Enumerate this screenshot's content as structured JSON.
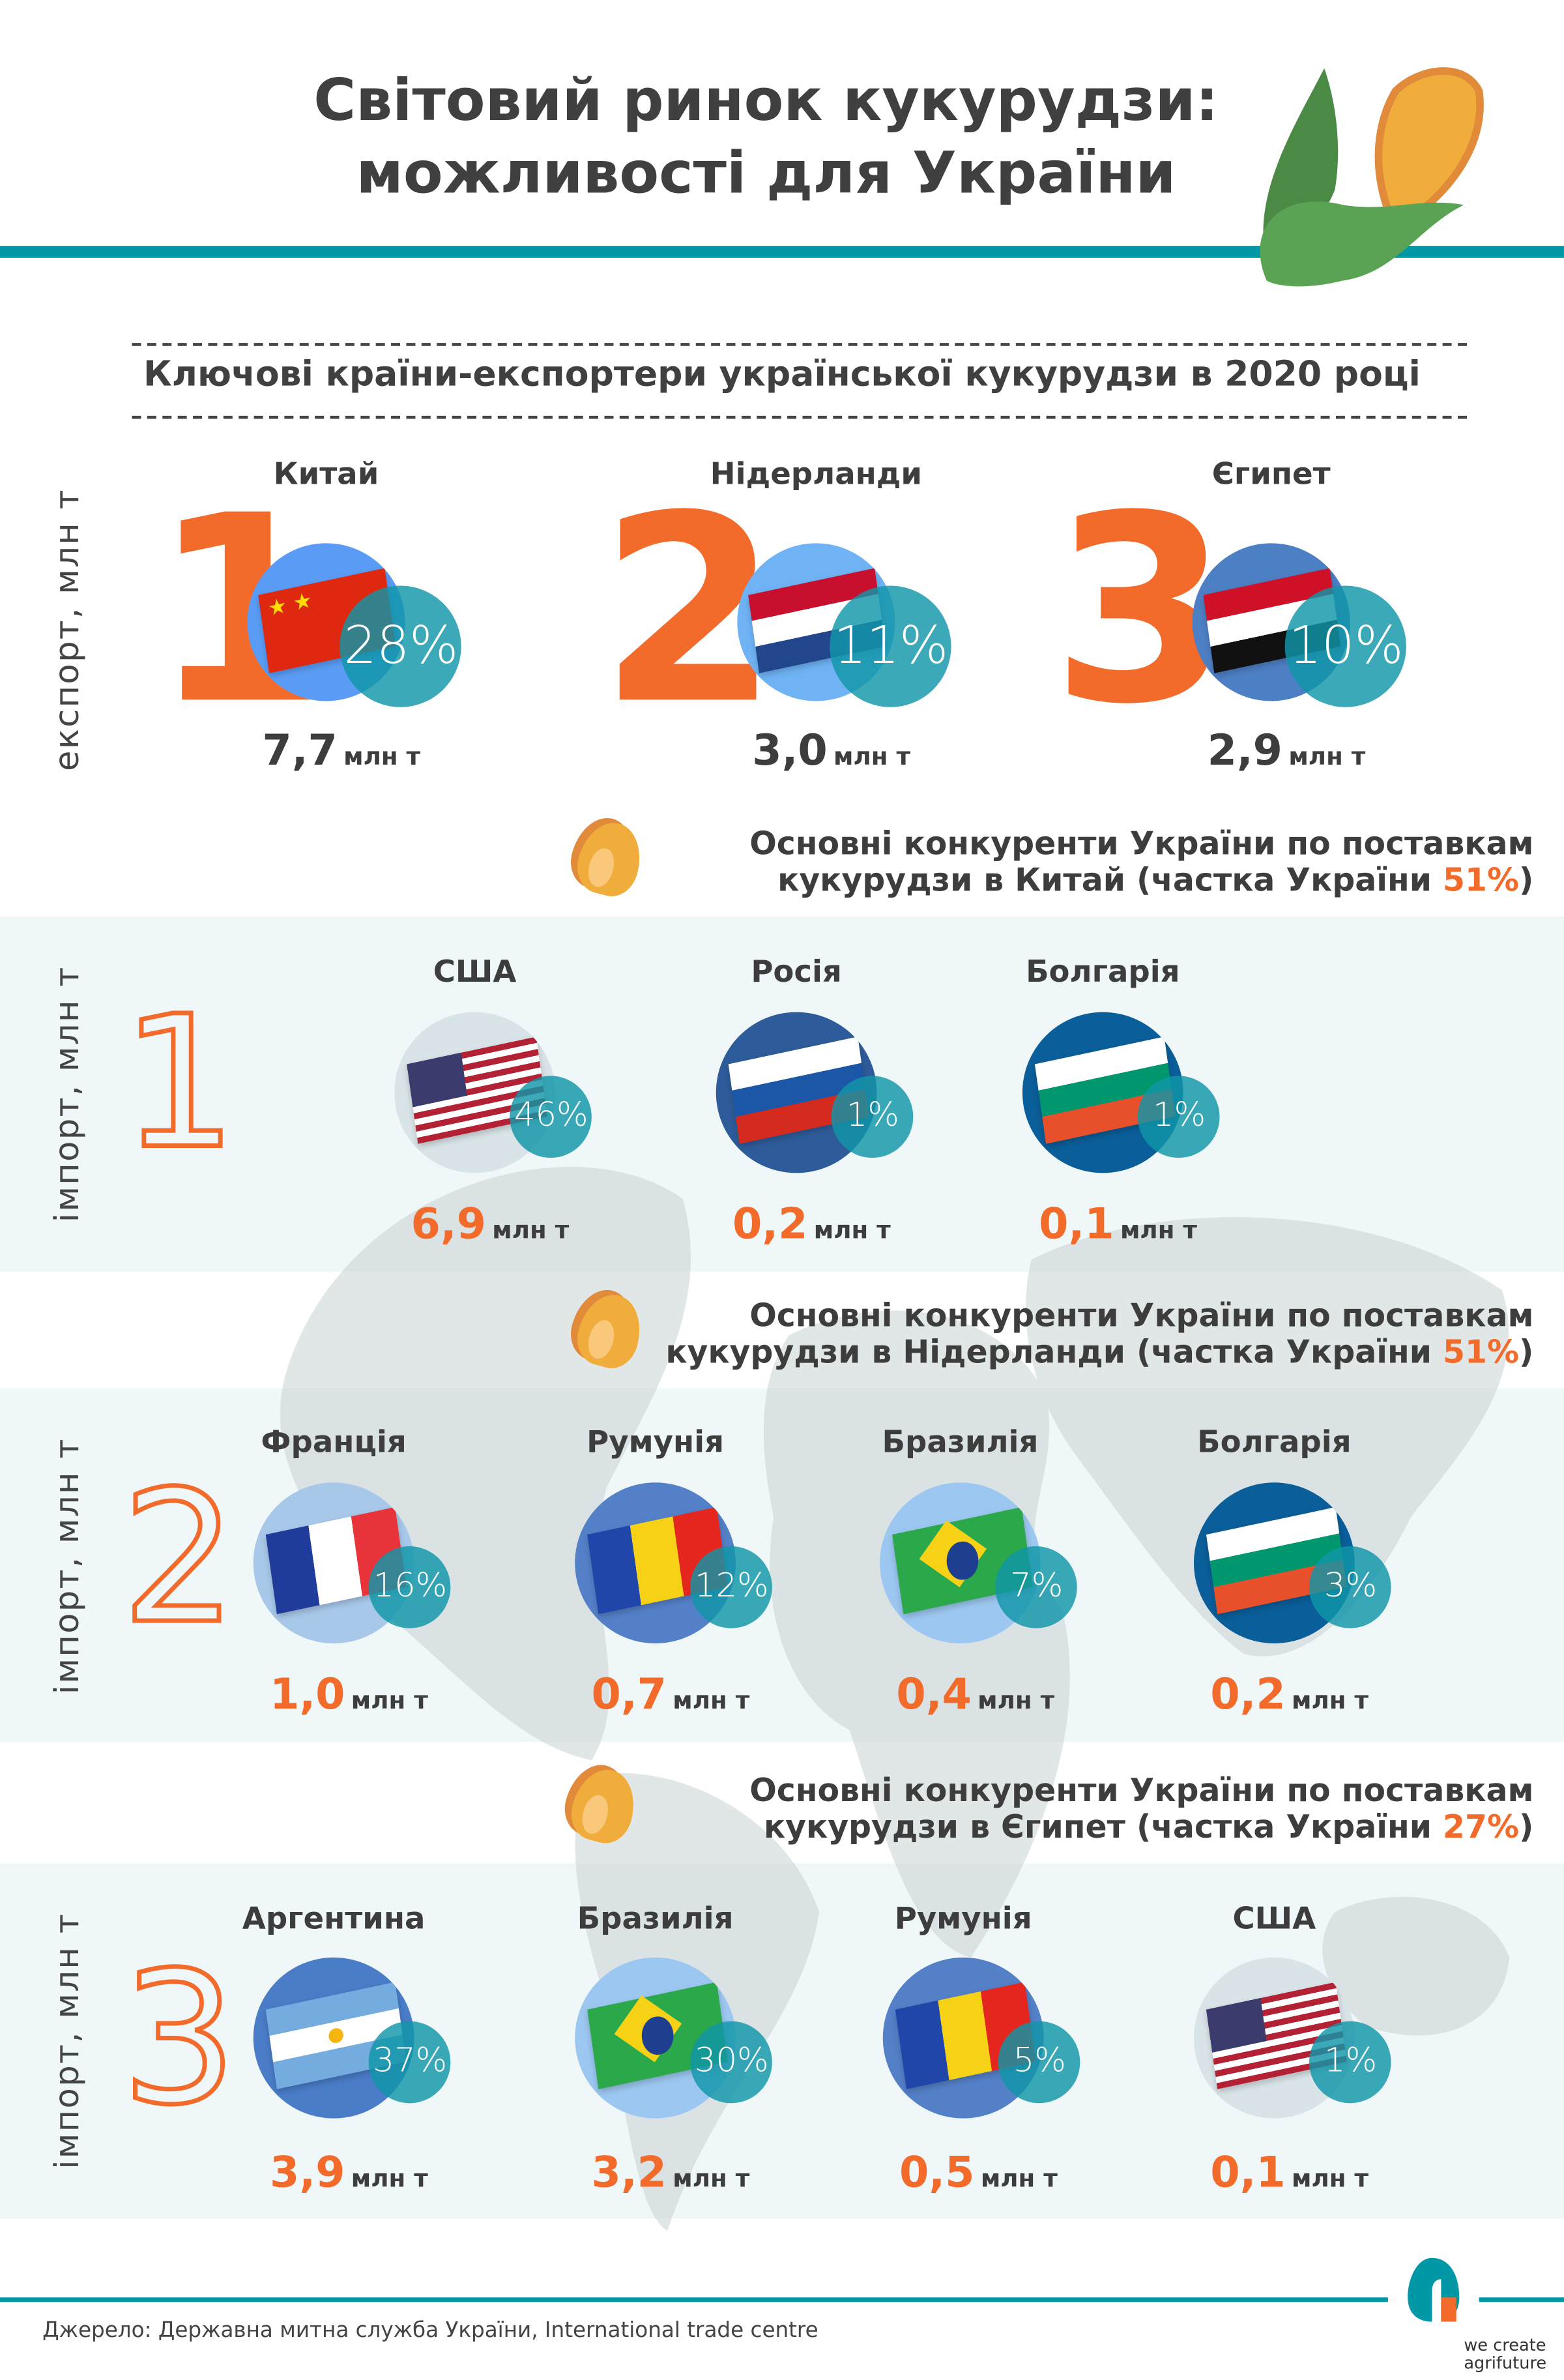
{
  "header": {
    "title_line1": "Світовий ринок кукурудзи:",
    "title_line2": "можливості для України"
  },
  "export_section": {
    "subtitle": "Ключові країни-експортери української кукурудзи в 2020 році",
    "axis_label": "експорт, млн т",
    "items": [
      {
        "rank": "1",
        "country": "Китай",
        "share": "28%",
        "value": "7,7",
        "unit": "млн т",
        "flag": "china-flag"
      },
      {
        "rank": "2",
        "country": "Нідерланди",
        "share": "11%",
        "value": "3,0",
        "unit": "млн т",
        "flag": "netherlands-flag"
      },
      {
        "rank": "3",
        "country": "Єгипет",
        "share": "10%",
        "value": "2,9",
        "unit": "млн т",
        "flag": "egypt-flag"
      }
    ]
  },
  "competitor_sections": [
    {
      "heading_line1": "Основні конкуренти України по поставкам",
      "heading_line2": "кукурудзи в Китай (частка України ",
      "ukraine_share": "51%",
      "heading_close": ")",
      "rank": "1",
      "axis_label": "імпорт, млн т",
      "items": [
        {
          "country": "США",
          "share": "46%",
          "value": "6,9",
          "unit": "млн т",
          "flag": "usa-flag"
        },
        {
          "country": "Росія",
          "share": "1%",
          "value": "0,2",
          "unit": "млн т",
          "flag": "russia-flag"
        },
        {
          "country": "Болгарія",
          "share": "1%",
          "value": "0,1",
          "unit": "млн т",
          "flag": "bulgaria-flag"
        }
      ]
    },
    {
      "heading_line1": "Основні конкуренти України по поставкам",
      "heading_line2": "кукурудзи в Нідерланди (частка України ",
      "ukraine_share": "51%",
      "heading_close": ")",
      "rank": "2",
      "axis_label": "імпорт, млн т",
      "items": [
        {
          "country": "Франція",
          "share": "16%",
          "value": "1,0",
          "unit": "млн т",
          "flag": "france-flag"
        },
        {
          "country": "Румунія",
          "share": "12%",
          "value": "0,7",
          "unit": "млн т",
          "flag": "romania-flag"
        },
        {
          "country": "Бразилія",
          "share": "7%",
          "value": "0,4",
          "unit": "млн т",
          "flag": "brazil-flag"
        },
        {
          "country": "Болгарія",
          "share": "3%",
          "value": "0,2",
          "unit": "млн т",
          "flag": "bulgaria-flag"
        }
      ]
    },
    {
      "heading_line1": "Основні конкуренти України по поставкам",
      "heading_line2": "кукурудзи в Єгипет (частка України ",
      "ukraine_share": "27%",
      "heading_close": ")",
      "rank": "3",
      "axis_label": "імпорт, млн т",
      "items": [
        {
          "country": "Аргентина",
          "share": "37%",
          "value": "3,9",
          "unit": "млн т",
          "flag": "argentina-flag"
        },
        {
          "country": "Бразилія",
          "share": "30%",
          "value": "3,2",
          "unit": "млн т",
          "flag": "brazil-flag"
        },
        {
          "country": "Румунія",
          "share": "5%",
          "value": "0,5",
          "unit": "млн т",
          "flag": "romania-flag"
        },
        {
          "country": "США",
          "share": "1%",
          "value": "0,1",
          "unit": "млн т",
          "flag": "usa-flag"
        }
      ]
    }
  ],
  "footer": {
    "source": "Джерело: Державна митна служба України, International trade centre",
    "brand_line1": "we create",
    "brand_line2": "agrifuture"
  },
  "colors": {
    "accent_orange": "#f26b2b",
    "teal": "#0097a7",
    "band_bg": "#eef6f8",
    "text": "#3d3d3d"
  }
}
